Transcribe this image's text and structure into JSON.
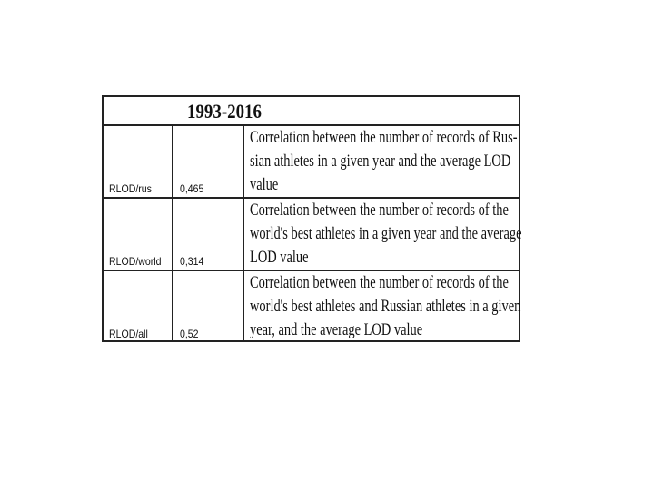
{
  "table": {
    "header": "1993-2016",
    "rows": [
      {
        "label": "RLOD/rus",
        "value": "0,465",
        "description_lines": [
          "Correlation between the number of records of Rus-",
          "sian athletes in a given year and the average LOD",
          "value"
        ]
      },
      {
        "label": "RLOD/world",
        "value": "0,314",
        "description_lines": [
          "Correlation between the number of records of the",
          "world's best athletes in a given year and the average",
          "LOD value"
        ]
      },
      {
        "label": "RLOD/all",
        "value": "0,52",
        "description_lines": [
          "Correlation between the number of records of the",
          "world's best athletes and Russian athletes in a given",
          "year, and the average LOD value"
        ]
      }
    ]
  }
}
